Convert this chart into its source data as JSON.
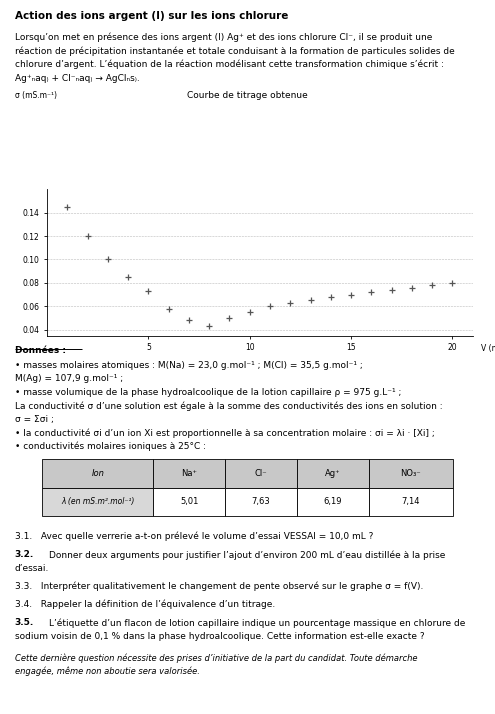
{
  "title": "Action des ions argent (I) sur les ions chlorure",
  "graph_title": "Courbe de titrage obtenue",
  "ylabel": "σ (mS.m⁻¹)",
  "xlabel": "V (mL)",
  "x_data": [
    1.0,
    2.0,
    3.0,
    4.0,
    5.0,
    6.0,
    7.0,
    8.0,
    9.0,
    10.0,
    11.0,
    12.0,
    13.0,
    14.0,
    15.0,
    16.0,
    17.0,
    18.0,
    19.0,
    20.0
  ],
  "y_data": [
    0.145,
    0.12,
    0.1,
    0.085,
    0.073,
    0.058,
    0.048,
    0.043,
    0.05,
    0.055,
    0.06,
    0.063,
    0.065,
    0.068,
    0.07,
    0.072,
    0.074,
    0.076,
    0.078,
    0.08
  ],
  "ylim": [
    0.035,
    0.16
  ],
  "xlim": [
    0,
    21
  ],
  "yticks": [
    0.04,
    0.06,
    0.08,
    0.1,
    0.12,
    0.14
  ],
  "ytick_labels": [
    "0.04",
    "0.06",
    "0.08",
    "0.10",
    "0.12",
    "0.14"
  ],
  "xticks": [
    5,
    10,
    15,
    20
  ],
  "donnees_title": "Données :",
  "bullet1": "masses molaires atomiques : M(Na) = 23,0 g.mol⁻¹ ; M(Cl) = 35,5 g.mol⁻¹ ;",
  "bullet1b": "M(Ag) = 107,9 g.mol⁻¹ ;",
  "bullet2": "masse volumique de la phase hydroalcoolique de la lotion capillaire ρ = 975 g.L⁻¹ ;",
  "cond_text1": "La conductivité σ d’une solution est égale à la somme des conductivités des ions en solution :",
  "cond_text2": "σ = Σσi ;",
  "bullet3": "la conductivité σi d’un ion Xi est proportionnelle à sa concentration molaire : σi = λi · [Xi] ;",
  "bullet4": "conductivités molaires ioniques à 25°C :",
  "table_ions": [
    "Ion",
    "Na⁺",
    "Cl⁻",
    "Ag⁺",
    "NO₃⁻"
  ],
  "table_lambda_label": "λ (en mS.m².mol⁻¹)",
  "table_values": [
    "5,01",
    "7,63",
    "6,19",
    "7,14"
  ],
  "q31": "3.1.   Avec quelle verrerie a-t-on prélevé le volume d’essai VESSAI = 10,0 mL ?",
  "q32_bold": "3.2.",
  "q32_text": "   Donner deux arguments pour justifier l’ajout d’environ 200 mL d’eau distillée à la prise d’essai.",
  "q33": "3.3.   Interpréter qualitativement le changement de pente observé sur le graphe σ = f(V).",
  "q34": "3.4.   Rappeler la définition de l’équivalence d’un titrage.",
  "q35_text": "3.5.   L’étiquette d’un flacon de lotion capillaire indique un pourcentage massique en chlorure de sodium voisin de 0,1 % dans la phase hydroalcoolique. Cette information est-elle exacte ?",
  "italic_note": "Cette dernière question nécessite des prises d’initiative de la part du candidat. Toute démarche engagée, même non aboutie sera valorisée.",
  "bg_color": "#ffffff",
  "table_header_bg": "#c8c8c8",
  "table_row_bg": "#d8d8d8"
}
